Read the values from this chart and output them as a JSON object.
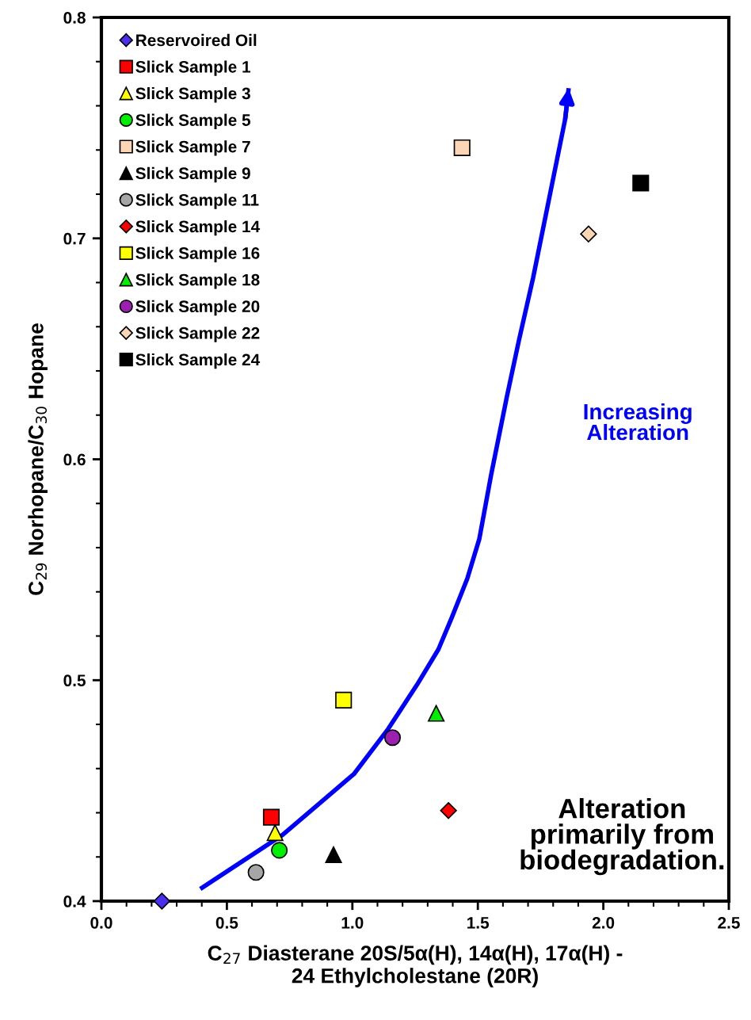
{
  "chart_data": {
    "type": "scatter",
    "xlabel": "C$_{27}$ Diasterane 20S/5α(H), 14α(H), 17α(H) -\n24 Ethylcholestane (20R)",
    "ylabel": "C$_{29}$ Norhopane/C$_{30}$ Hopane",
    "xlim": [
      0,
      2.5
    ],
    "xticks": [
      {
        "value": 0,
        "label": "0.0"
      },
      {
        "value": 0.5,
        "label": "0.5"
      },
      {
        "value": 1,
        "label": "1.0"
      },
      {
        "value": 1.5,
        "label": "1.5"
      },
      {
        "value": 2,
        "label": "2.0"
      },
      {
        "value": 2.5,
        "label": "2.5"
      }
    ],
    "ylim": [
      0.4,
      0.8
    ],
    "yticks": [
      0.4,
      0.5,
      0.6,
      0.7,
      0.8
    ],
    "grid": false,
    "legend": "top left",
    "annotations": [
      "Increasing\nAlteration",
      "Alteration\nprimarily from\nbiodegradation."
    ],
    "series": [
      {
        "name": "Reservoired Oil",
        "color": "#4a2ff0",
        "marker": "diamond",
        "x": [
          0.241
        ],
        "values": [
          0.4
        ]
      },
      {
        "name": "Slick Sample 1",
        "color": "#ff0000",
        "marker": "square",
        "x": [
          0.677
        ],
        "values": [
          0.438
        ]
      },
      {
        "name": "Slick Sample 3",
        "color": "#ffff00",
        "marker": "triangle",
        "x": [
          0.692
        ],
        "values": [
          0.431
        ]
      },
      {
        "name": "Slick Sample 5",
        "color": "#00ee00",
        "marker": "circle",
        "x": [
          0.709
        ],
        "values": [
          0.423
        ]
      },
      {
        "name": "Slick Sample 7",
        "color": "#fcd5b4",
        "marker": "square",
        "x": [
          1.437
        ],
        "values": [
          0.741
        ]
      },
      {
        "name": "Slick Sample 9",
        "color": "#000000",
        "marker": "triangle",
        "x": [
          0.925
        ],
        "values": [
          0.421
        ]
      },
      {
        "name": "Slick Sample 11",
        "color": "#a6a6a6",
        "marker": "circle",
        "x": [
          0.616
        ],
        "values": [
          0.413
        ]
      },
      {
        "name": "Slick Sample 14",
        "color": "#ff0000",
        "marker": "diamond",
        "x": [
          1.383
        ],
        "values": [
          0.441
        ]
      },
      {
        "name": "Slick Sample 16",
        "color": "#ffff00",
        "marker": "square",
        "x": [
          0.965
        ],
        "values": [
          0.491
        ]
      },
      {
        "name": "Slick Sample 18",
        "color": "#00ee00",
        "marker": "triangle",
        "x": [
          1.334
        ],
        "values": [
          0.485
        ]
      },
      {
        "name": "Slick Sample 20",
        "color": "#9b20b0",
        "marker": "circle",
        "x": [
          1.16
        ],
        "values": [
          0.474
        ]
      },
      {
        "name": "Slick Sample 22",
        "color": "#fcd5b4",
        "marker": "diamond",
        "x": [
          1.941
        ],
        "values": [
          0.702
        ]
      },
      {
        "name": "Slick Sample 24",
        "color": "#000000",
        "marker": "square",
        "x": [
          2.149
        ],
        "values": [
          0.725
        ]
      },
      {
        "type": "line",
        "color": "#0000ff",
        "marker": "none",
        "x": [
          0.394,
          0.722,
          1.006,
          1.143,
          1.258,
          1.343,
          1.395,
          1.458,
          1.506,
          1.553,
          1.616,
          1.664,
          1.72,
          1.848,
          1.862
        ],
        "values": [
          0.4055,
          0.43,
          0.4575,
          0.478,
          0.498,
          0.514,
          0.528,
          0.546,
          0.564,
          0.593,
          0.6285,
          0.654,
          0.682,
          0.754,
          0.768
        ]
      }
    ]
  }
}
